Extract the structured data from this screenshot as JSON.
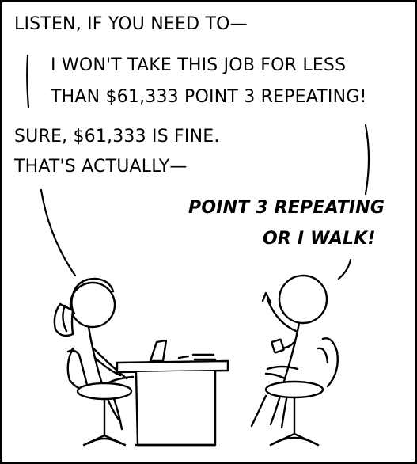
{
  "comic": {
    "lines": [
      "LISTEN, IF YOU NEED TO—",
      "I WON'T TAKE THIS JOB FOR LESS",
      "THAN $61,333 POINT 3 REPEATING!",
      "SURE, $61,333 IS FINE.",
      "THAT'S ACTUALLY—",
      "POINT 3 REPEATING",
      "OR I WALK!"
    ]
  }
}
